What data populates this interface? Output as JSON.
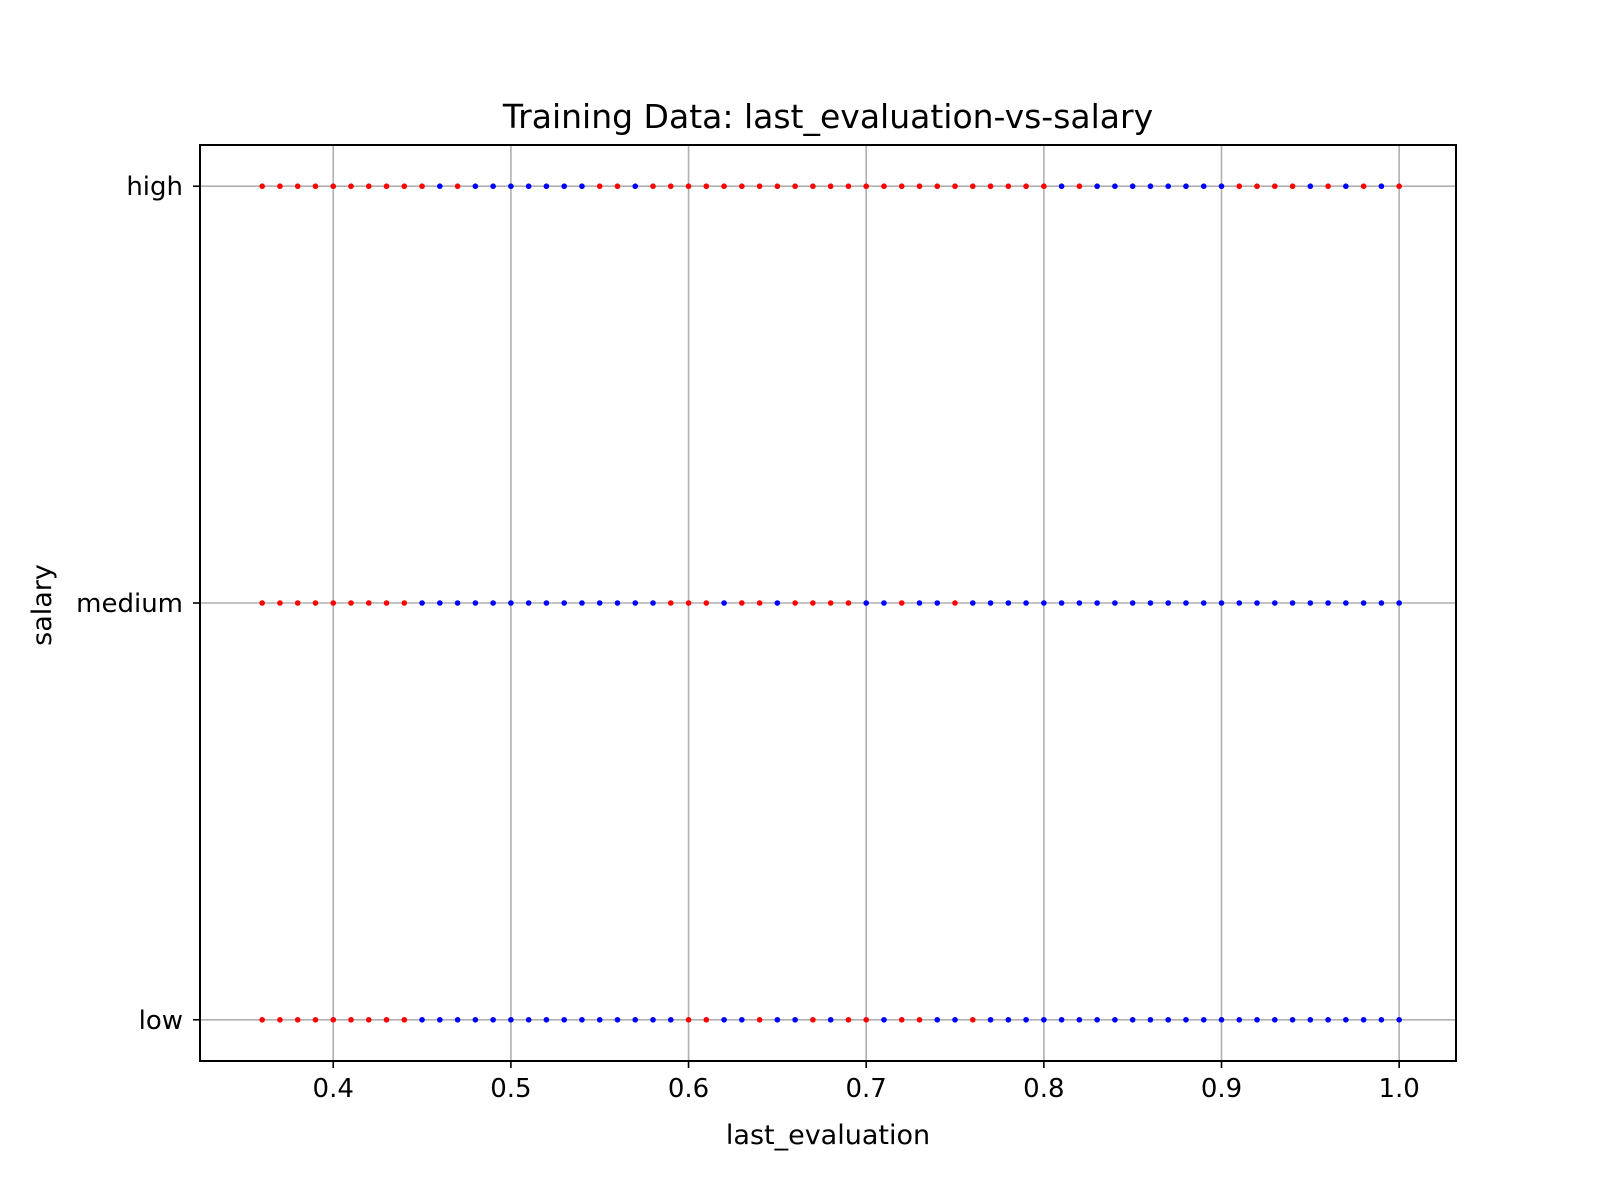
{
  "chart_data": {
    "type": "scatter",
    "title": "Training Data: last_evaluation-vs-salary",
    "xlabel": "last_evaluation",
    "ylabel": "salary",
    "xlim": [
      0.325,
      1.032
    ],
    "x_ticks": [
      0.4,
      0.5,
      0.6,
      0.7,
      0.8,
      0.9,
      1.0
    ],
    "x_tick_labels": [
      "0.4",
      "0.5",
      "0.6",
      "0.7",
      "0.8",
      "0.9",
      "1.0"
    ],
    "y_categories": [
      "low",
      "medium",
      "high"
    ],
    "grid": true,
    "legend": "none",
    "colors": {
      "class_red": "#ff0000",
      "class_blue": "#0000ff",
      "grid": "#b0b0b0",
      "axes": "#000000"
    },
    "series": [
      {
        "color": "#ff0000",
        "points": [
          {
            "x": 0.36,
            "y": "high"
          },
          {
            "x": 0.37,
            "y": "high"
          },
          {
            "x": 0.38,
            "y": "high"
          },
          {
            "x": 0.39,
            "y": "high"
          },
          {
            "x": 0.4,
            "y": "high"
          },
          {
            "x": 0.41,
            "y": "high"
          },
          {
            "x": 0.42,
            "y": "high"
          },
          {
            "x": 0.43,
            "y": "high"
          },
          {
            "x": 0.44,
            "y": "high"
          },
          {
            "x": 0.45,
            "y": "high"
          },
          {
            "x": 0.47,
            "y": "high"
          },
          {
            "x": 0.55,
            "y": "high"
          },
          {
            "x": 0.56,
            "y": "high"
          },
          {
            "x": 0.58,
            "y": "high"
          },
          {
            "x": 0.59,
            "y": "high"
          },
          {
            "x": 0.6,
            "y": "high"
          },
          {
            "x": 0.61,
            "y": "high"
          },
          {
            "x": 0.62,
            "y": "high"
          },
          {
            "x": 0.63,
            "y": "high"
          },
          {
            "x": 0.64,
            "y": "high"
          },
          {
            "x": 0.65,
            "y": "high"
          },
          {
            "x": 0.66,
            "y": "high"
          },
          {
            "x": 0.67,
            "y": "high"
          },
          {
            "x": 0.68,
            "y": "high"
          },
          {
            "x": 0.69,
            "y": "high"
          },
          {
            "x": 0.7,
            "y": "high"
          },
          {
            "x": 0.71,
            "y": "high"
          },
          {
            "x": 0.72,
            "y": "high"
          },
          {
            "x": 0.73,
            "y": "high"
          },
          {
            "x": 0.74,
            "y": "high"
          },
          {
            "x": 0.75,
            "y": "high"
          },
          {
            "x": 0.76,
            "y": "high"
          },
          {
            "x": 0.77,
            "y": "high"
          },
          {
            "x": 0.78,
            "y": "high"
          },
          {
            "x": 0.79,
            "y": "high"
          },
          {
            "x": 0.8,
            "y": "high"
          },
          {
            "x": 0.82,
            "y": "high"
          },
          {
            "x": 0.91,
            "y": "high"
          },
          {
            "x": 0.92,
            "y": "high"
          },
          {
            "x": 0.93,
            "y": "high"
          },
          {
            "x": 0.94,
            "y": "high"
          },
          {
            "x": 0.96,
            "y": "high"
          },
          {
            "x": 0.98,
            "y": "high"
          },
          {
            "x": 1.0,
            "y": "high"
          },
          {
            "x": 0.36,
            "y": "medium"
          },
          {
            "x": 0.37,
            "y": "medium"
          },
          {
            "x": 0.38,
            "y": "medium"
          },
          {
            "x": 0.39,
            "y": "medium"
          },
          {
            "x": 0.4,
            "y": "medium"
          },
          {
            "x": 0.41,
            "y": "medium"
          },
          {
            "x": 0.42,
            "y": "medium"
          },
          {
            "x": 0.43,
            "y": "medium"
          },
          {
            "x": 0.44,
            "y": "medium"
          },
          {
            "x": 0.59,
            "y": "medium"
          },
          {
            "x": 0.6,
            "y": "medium"
          },
          {
            "x": 0.61,
            "y": "medium"
          },
          {
            "x": 0.63,
            "y": "medium"
          },
          {
            "x": 0.64,
            "y": "medium"
          },
          {
            "x": 0.66,
            "y": "medium"
          },
          {
            "x": 0.67,
            "y": "medium"
          },
          {
            "x": 0.68,
            "y": "medium"
          },
          {
            "x": 0.69,
            "y": "medium"
          },
          {
            "x": 0.72,
            "y": "medium"
          },
          {
            "x": 0.75,
            "y": "medium"
          },
          {
            "x": 0.36,
            "y": "low"
          },
          {
            "x": 0.37,
            "y": "low"
          },
          {
            "x": 0.38,
            "y": "low"
          },
          {
            "x": 0.39,
            "y": "low"
          },
          {
            "x": 0.4,
            "y": "low"
          },
          {
            "x": 0.41,
            "y": "low"
          },
          {
            "x": 0.42,
            "y": "low"
          },
          {
            "x": 0.43,
            "y": "low"
          },
          {
            "x": 0.44,
            "y": "low"
          },
          {
            "x": 0.6,
            "y": "low"
          },
          {
            "x": 0.61,
            "y": "low"
          },
          {
            "x": 0.64,
            "y": "low"
          },
          {
            "x": 0.67,
            "y": "low"
          },
          {
            "x": 0.69,
            "y": "low"
          },
          {
            "x": 0.7,
            "y": "low"
          },
          {
            "x": 0.72,
            "y": "low"
          },
          {
            "x": 0.73,
            "y": "low"
          },
          {
            "x": 0.76,
            "y": "low"
          }
        ]
      },
      {
        "color": "#0000ff",
        "points": [
          {
            "x": 0.46,
            "y": "high"
          },
          {
            "x": 0.48,
            "y": "high"
          },
          {
            "x": 0.49,
            "y": "high"
          },
          {
            "x": 0.5,
            "y": "high"
          },
          {
            "x": 0.51,
            "y": "high"
          },
          {
            "x": 0.52,
            "y": "high"
          },
          {
            "x": 0.53,
            "y": "high"
          },
          {
            "x": 0.54,
            "y": "high"
          },
          {
            "x": 0.57,
            "y": "high"
          },
          {
            "x": 0.81,
            "y": "high"
          },
          {
            "x": 0.83,
            "y": "high"
          },
          {
            "x": 0.84,
            "y": "high"
          },
          {
            "x": 0.85,
            "y": "high"
          },
          {
            "x": 0.86,
            "y": "high"
          },
          {
            "x": 0.87,
            "y": "high"
          },
          {
            "x": 0.88,
            "y": "high"
          },
          {
            "x": 0.89,
            "y": "high"
          },
          {
            "x": 0.9,
            "y": "high"
          },
          {
            "x": 0.95,
            "y": "high"
          },
          {
            "x": 0.97,
            "y": "high"
          },
          {
            "x": 0.99,
            "y": "high"
          },
          {
            "x": 0.45,
            "y": "medium"
          },
          {
            "x": 0.46,
            "y": "medium"
          },
          {
            "x": 0.47,
            "y": "medium"
          },
          {
            "x": 0.48,
            "y": "medium"
          },
          {
            "x": 0.49,
            "y": "medium"
          },
          {
            "x": 0.5,
            "y": "medium"
          },
          {
            "x": 0.51,
            "y": "medium"
          },
          {
            "x": 0.52,
            "y": "medium"
          },
          {
            "x": 0.53,
            "y": "medium"
          },
          {
            "x": 0.54,
            "y": "medium"
          },
          {
            "x": 0.55,
            "y": "medium"
          },
          {
            "x": 0.56,
            "y": "medium"
          },
          {
            "x": 0.57,
            "y": "medium"
          },
          {
            "x": 0.58,
            "y": "medium"
          },
          {
            "x": 0.62,
            "y": "medium"
          },
          {
            "x": 0.65,
            "y": "medium"
          },
          {
            "x": 0.7,
            "y": "medium"
          },
          {
            "x": 0.71,
            "y": "medium"
          },
          {
            "x": 0.73,
            "y": "medium"
          },
          {
            "x": 0.74,
            "y": "medium"
          },
          {
            "x": 0.76,
            "y": "medium"
          },
          {
            "x": 0.77,
            "y": "medium"
          },
          {
            "x": 0.78,
            "y": "medium"
          },
          {
            "x": 0.79,
            "y": "medium"
          },
          {
            "x": 0.8,
            "y": "medium"
          },
          {
            "x": 0.81,
            "y": "medium"
          },
          {
            "x": 0.82,
            "y": "medium"
          },
          {
            "x": 0.83,
            "y": "medium"
          },
          {
            "x": 0.84,
            "y": "medium"
          },
          {
            "x": 0.85,
            "y": "medium"
          },
          {
            "x": 0.86,
            "y": "medium"
          },
          {
            "x": 0.87,
            "y": "medium"
          },
          {
            "x": 0.88,
            "y": "medium"
          },
          {
            "x": 0.89,
            "y": "medium"
          },
          {
            "x": 0.9,
            "y": "medium"
          },
          {
            "x": 0.91,
            "y": "medium"
          },
          {
            "x": 0.92,
            "y": "medium"
          },
          {
            "x": 0.93,
            "y": "medium"
          },
          {
            "x": 0.94,
            "y": "medium"
          },
          {
            "x": 0.95,
            "y": "medium"
          },
          {
            "x": 0.96,
            "y": "medium"
          },
          {
            "x": 0.97,
            "y": "medium"
          },
          {
            "x": 0.98,
            "y": "medium"
          },
          {
            "x": 0.99,
            "y": "medium"
          },
          {
            "x": 1.0,
            "y": "medium"
          },
          {
            "x": 0.45,
            "y": "low"
          },
          {
            "x": 0.46,
            "y": "low"
          },
          {
            "x": 0.47,
            "y": "low"
          },
          {
            "x": 0.48,
            "y": "low"
          },
          {
            "x": 0.49,
            "y": "low"
          },
          {
            "x": 0.5,
            "y": "low"
          },
          {
            "x": 0.51,
            "y": "low"
          },
          {
            "x": 0.52,
            "y": "low"
          },
          {
            "x": 0.53,
            "y": "low"
          },
          {
            "x": 0.54,
            "y": "low"
          },
          {
            "x": 0.55,
            "y": "low"
          },
          {
            "x": 0.56,
            "y": "low"
          },
          {
            "x": 0.57,
            "y": "low"
          },
          {
            "x": 0.58,
            "y": "low"
          },
          {
            "x": 0.59,
            "y": "low"
          },
          {
            "x": 0.62,
            "y": "low"
          },
          {
            "x": 0.63,
            "y": "low"
          },
          {
            "x": 0.65,
            "y": "low"
          },
          {
            "x": 0.66,
            "y": "low"
          },
          {
            "x": 0.68,
            "y": "low"
          },
          {
            "x": 0.71,
            "y": "low"
          },
          {
            "x": 0.74,
            "y": "low"
          },
          {
            "x": 0.75,
            "y": "low"
          },
          {
            "x": 0.77,
            "y": "low"
          },
          {
            "x": 0.78,
            "y": "low"
          },
          {
            "x": 0.79,
            "y": "low"
          },
          {
            "x": 0.8,
            "y": "low"
          },
          {
            "x": 0.81,
            "y": "low"
          },
          {
            "x": 0.82,
            "y": "low"
          },
          {
            "x": 0.83,
            "y": "low"
          },
          {
            "x": 0.84,
            "y": "low"
          },
          {
            "x": 0.85,
            "y": "low"
          },
          {
            "x": 0.86,
            "y": "low"
          },
          {
            "x": 0.87,
            "y": "low"
          },
          {
            "x": 0.88,
            "y": "low"
          },
          {
            "x": 0.89,
            "y": "low"
          },
          {
            "x": 0.9,
            "y": "low"
          },
          {
            "x": 0.91,
            "y": "low"
          },
          {
            "x": 0.92,
            "y": "low"
          },
          {
            "x": 0.93,
            "y": "low"
          },
          {
            "x": 0.94,
            "y": "low"
          },
          {
            "x": 0.95,
            "y": "low"
          },
          {
            "x": 0.96,
            "y": "low"
          },
          {
            "x": 0.97,
            "y": "low"
          },
          {
            "x": 0.98,
            "y": "low"
          },
          {
            "x": 0.99,
            "y": "low"
          },
          {
            "x": 1.0,
            "y": "low"
          }
        ]
      }
    ]
  }
}
